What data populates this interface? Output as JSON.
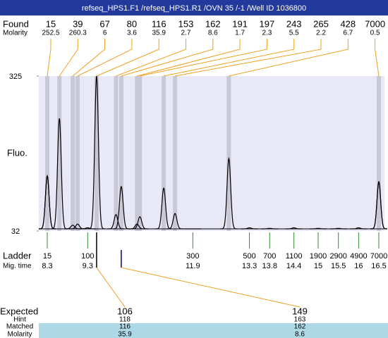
{
  "chart_data": {
    "type": "electropherogram",
    "title": "refseq_HPS1.F1 /refseq_HPS1.R1 /OVN 35 /-1 /Well ID 1036800",
    "ylabel": "Fluo.",
    "ylim": [
      32,
      325
    ],
    "yticks": [
      32,
      325
    ],
    "trace_color": "#000000",
    "band_color": "#c8c8d6",
    "plot_background": "#e8e8f6",
    "found": {
      "label": "Found",
      "molarity_label": "Molarity",
      "sizes": [
        15,
        39,
        67,
        80,
        116,
        153,
        162,
        191,
        197,
        243,
        265,
        428,
        7000
      ],
      "molarity": [
        252.5,
        260.3,
        6,
        3.6,
        35.9,
        2.7,
        8.6,
        1.7,
        2.3,
        5.5,
        2.2,
        6.7,
        0.5
      ],
      "times": [
        8.3,
        8.6,
        8.93,
        9.05,
        9.52,
        10.0,
        10.13,
        10.52,
        10.59,
        11.18,
        11.46,
        12.79,
        16.5
      ],
      "heights": [
        136,
        245,
        43,
        45,
        325,
        63,
        116,
        45,
        59,
        113,
        65,
        169,
        125
      ],
      "color": "#f0a020"
    },
    "ladder": {
      "label": "Ladder",
      "time_label": "Mig. time",
      "sizes": [
        15,
        100,
        300,
        500,
        700,
        1100,
        1900,
        2900,
        4900,
        7000
      ],
      "times": [
        8.3,
        9.3,
        11.9,
        13.3,
        13.8,
        14.4,
        15,
        15.5,
        16,
        16.5
      ],
      "heights": [
        136,
        38,
        36,
        38,
        37,
        38,
        37,
        37,
        38,
        125
      ],
      "color": "#2e8b2e"
    },
    "expected": {
      "label": "Expected",
      "values": [
        106,
        149
      ],
      "hint_label": "Hint",
      "hints": [
        118,
        163
      ],
      "matched_label": "Matched",
      "matched": [
        116,
        162
      ],
      "molarity_label": "Molarity",
      "molarity": [
        35.9,
        8.6
      ],
      "marker_colors": [
        "#000000",
        "#00008b"
      ],
      "row_color": "#add8e6"
    }
  }
}
